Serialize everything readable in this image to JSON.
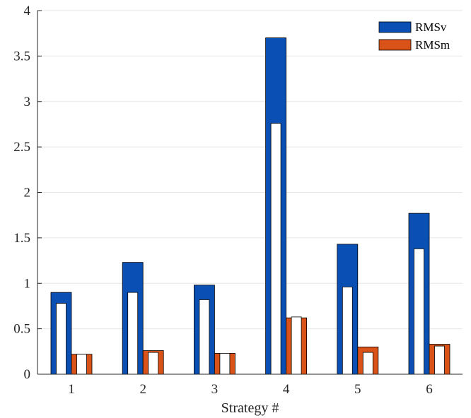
{
  "chart_data": {
    "type": "bar",
    "xlabel": "Strategy #",
    "ylabel": "",
    "title": "",
    "ylim": [
      0,
      4
    ],
    "yticks": [
      0,
      0.5,
      1,
      1.5,
      2,
      2.5,
      3,
      3.5,
      4
    ],
    "ytick_labels": [
      "0",
      "0.5",
      "1",
      "1.5",
      "2",
      "2.5",
      "3",
      "3.5",
      "4"
    ],
    "categories": [
      "1",
      "2",
      "3",
      "4",
      "5",
      "6"
    ],
    "grid": "horizontal",
    "legend_position": "top-right",
    "series": [
      {
        "name": "RMSv",
        "color": "#0a50b4",
        "values": [
          0.9,
          1.23,
          0.98,
          3.7,
          1.43,
          1.77
        ],
        "inner_values": [
          0.78,
          0.9,
          0.82,
          2.76,
          0.96,
          1.38
        ]
      },
      {
        "name": "RMSm",
        "color": "#d95319",
        "values": [
          0.22,
          0.26,
          0.23,
          0.62,
          0.3,
          0.33
        ],
        "inner_values": [
          0.22,
          0.24,
          0.23,
          0.63,
          0.24,
          0.31
        ]
      }
    ]
  }
}
